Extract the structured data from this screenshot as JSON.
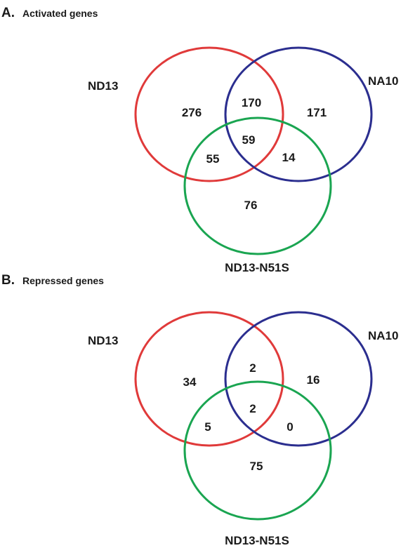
{
  "colors": {
    "red": "#e03a3a",
    "blue": "#2b2e8f",
    "green": "#1aa551"
  },
  "panels": [
    {
      "letter": "A.",
      "title": "Activated genes",
      "sets": {
        "left": "ND13",
        "right": "NA10",
        "bottom": "ND13-N51S"
      },
      "counts": {
        "left_only": "276",
        "right_only": "171",
        "bottom_only": "76",
        "left_right": "170",
        "left_bottom": "55",
        "right_bottom": "14",
        "all_three": "59"
      }
    },
    {
      "letter": "B.",
      "title": "Repressed genes",
      "sets": {
        "left": "ND13",
        "right": "NA10",
        "bottom": "ND13-N51S"
      },
      "counts": {
        "left_only": "34",
        "right_only": "16",
        "bottom_only": "75",
        "left_right": "2",
        "left_bottom": "5",
        "right_bottom": "0",
        "all_three": "2"
      }
    }
  ]
}
